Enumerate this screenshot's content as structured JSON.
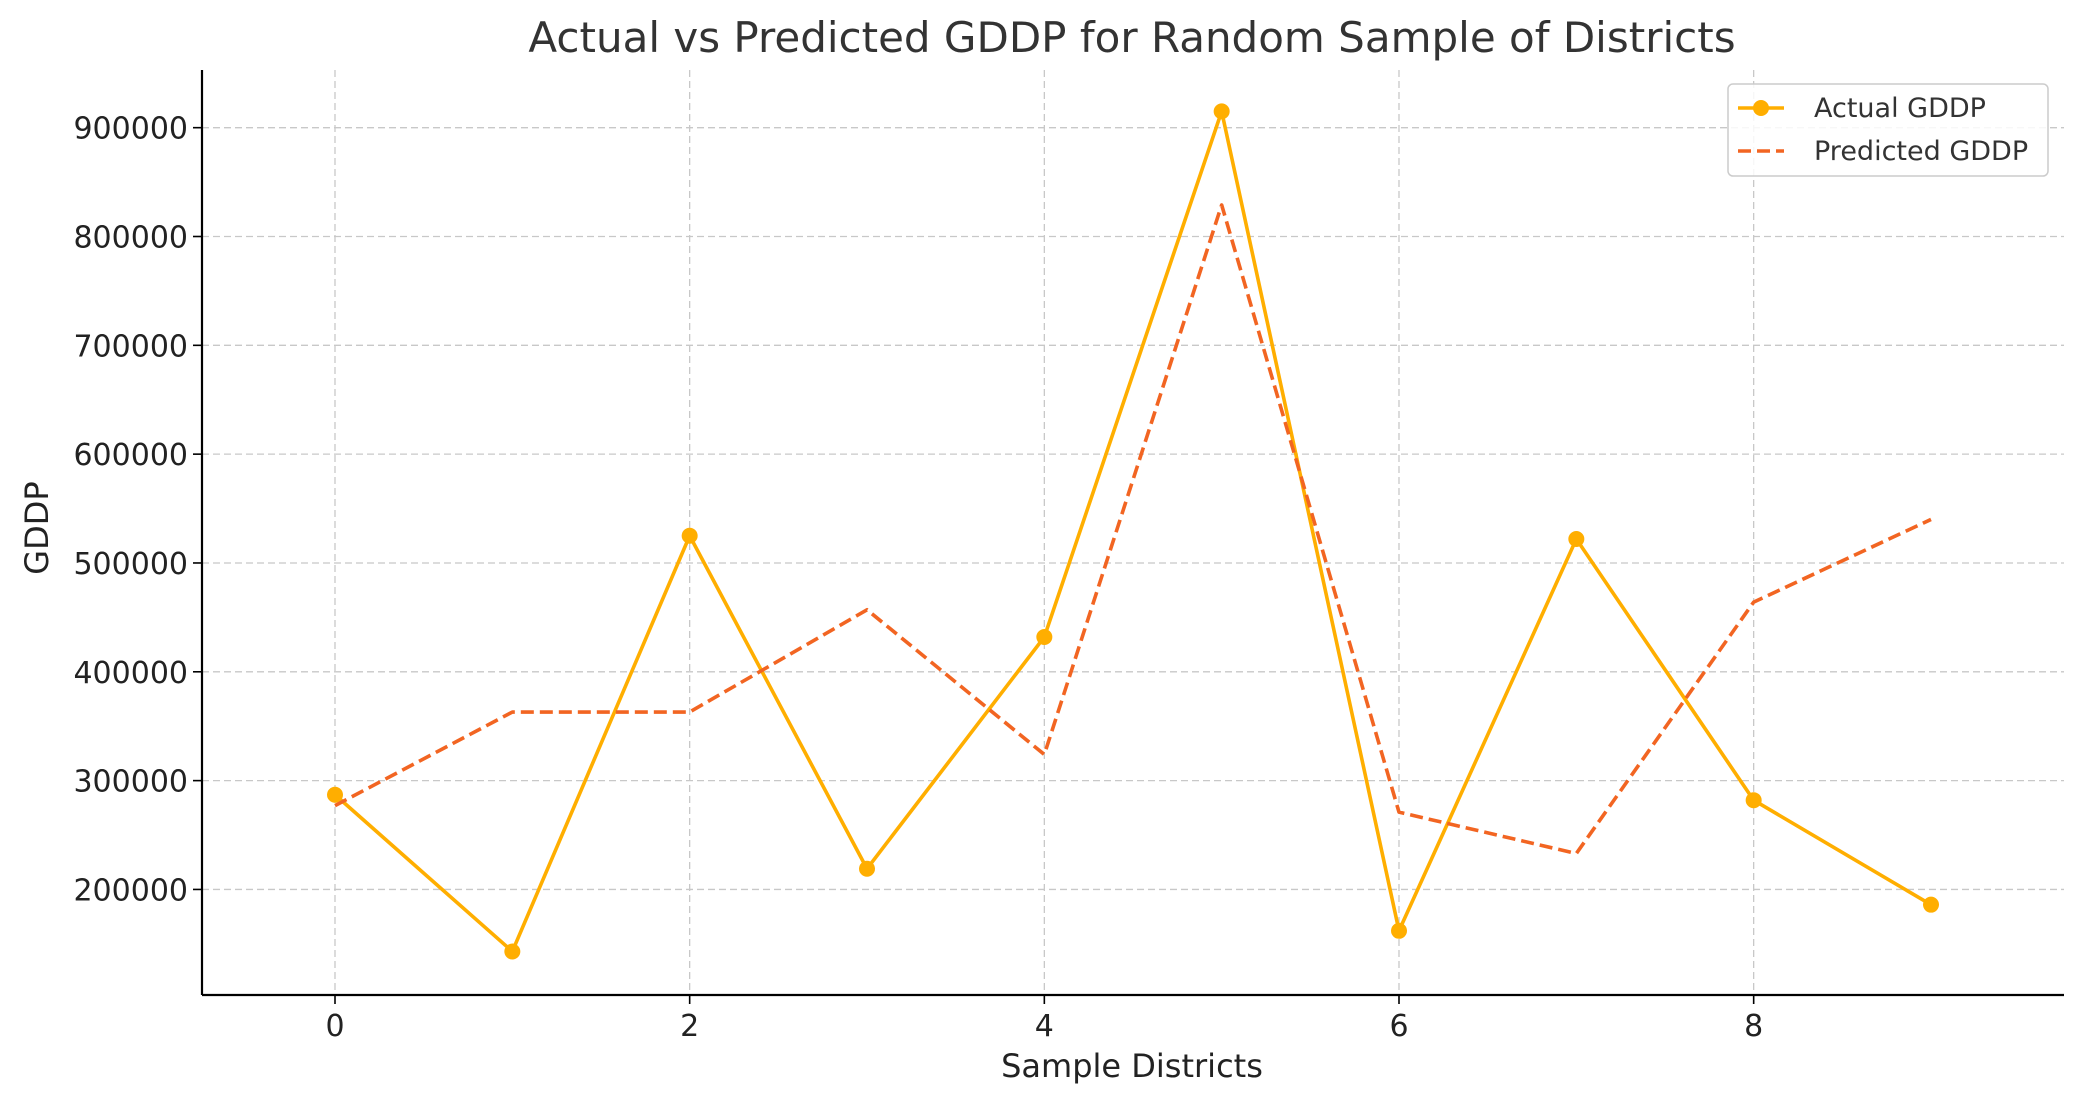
{
  "chart_data": {
    "type": "line",
    "title": "Actual vs Predicted GDDP for Random Sample of Districts",
    "xlabel": "Sample Districts",
    "ylabel": "GDDP",
    "x": [
      0,
      1,
      2,
      3,
      4,
      5,
      6,
      7,
      8,
      9
    ],
    "xlim": [
      -0.75,
      9.75
    ],
    "ylim": [
      103000,
      953000
    ],
    "xticks": [
      0,
      2,
      4,
      6,
      8
    ],
    "yticks": [
      200000,
      300000,
      400000,
      500000,
      600000,
      700000,
      800000,
      900000
    ],
    "grid": true,
    "legend_position": "top-right",
    "series": [
      {
        "name": "Actual GDDP",
        "style": "solid",
        "marker": "circle",
        "color": "#FFAE00",
        "values": [
          287000,
          143000,
          525000,
          219000,
          432000,
          915000,
          162000,
          522000,
          282000,
          186000
        ]
      },
      {
        "name": "Predicted GDDP",
        "style": "dashed",
        "marker": "none",
        "color": "#F26522",
        "values": [
          277000,
          363000,
          363000,
          457000,
          324000,
          829000,
          271000,
          233000,
          464000,
          540000
        ]
      }
    ]
  }
}
